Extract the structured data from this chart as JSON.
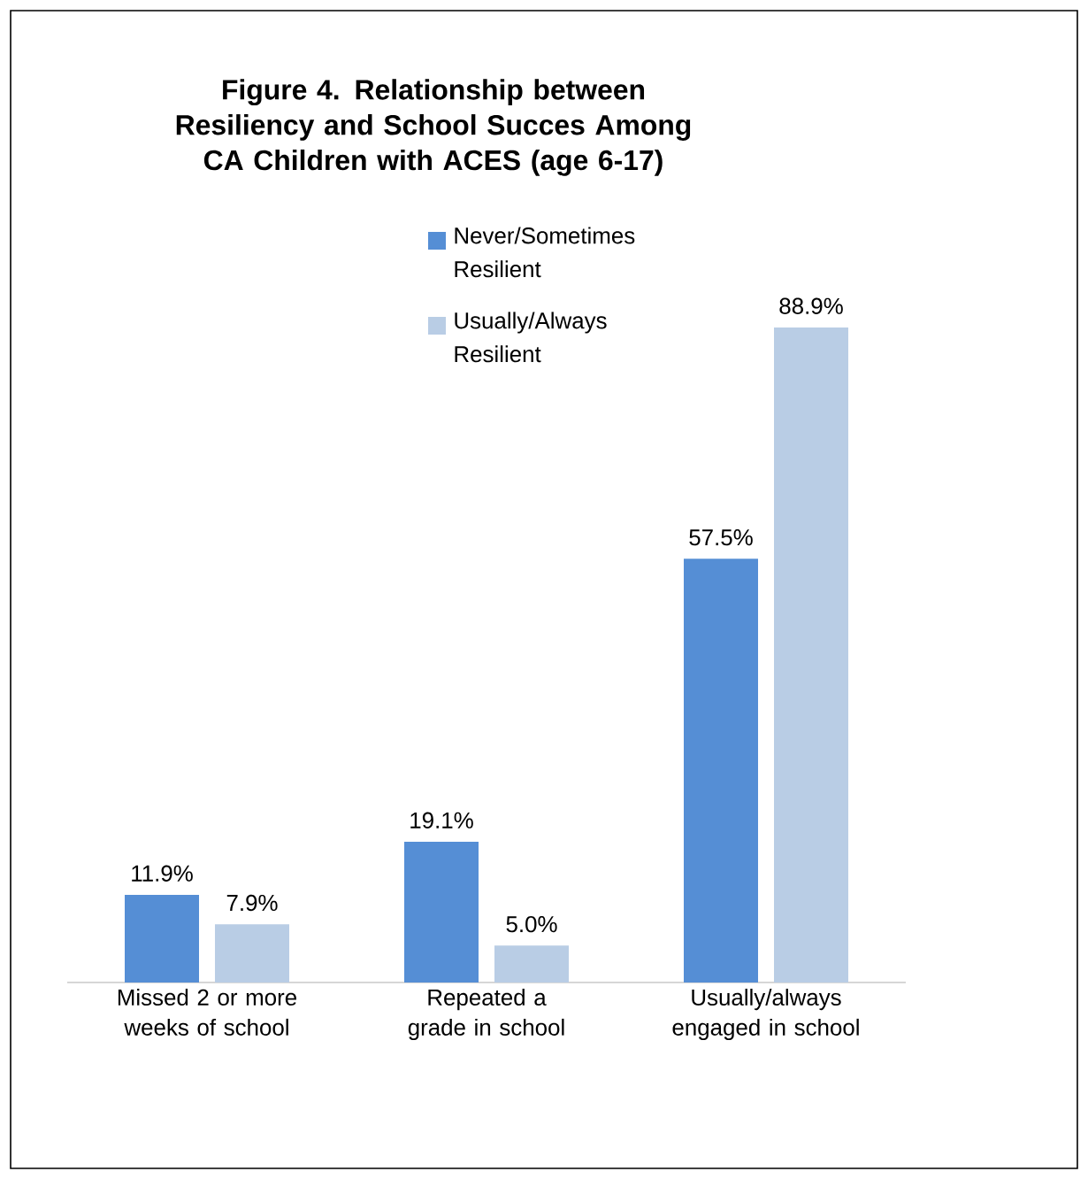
{
  "chart_data": {
    "type": "bar",
    "title": "Figure 4. Relationship between Resiliency and School Succes Among CA Children with ACES (age 6-17)",
    "categories": [
      "Missed 2 or more weeks of school",
      "Repeated a grade in school",
      "Usually/always engaged in school"
    ],
    "series": [
      {
        "name": "Never/Sometimes Resilient",
        "color": "#558ed5",
        "values": [
          11.9,
          19.1,
          57.5
        ],
        "value_labels": [
          "11.9%",
          "19.1%",
          "57.5%"
        ]
      },
      {
        "name": "Usually/Always Resilient",
        "color": "#b9cde5",
        "values": [
          7.9,
          5.0,
          88.9
        ],
        "value_labels": [
          "7.9%",
          "5.0%",
          "88.9%"
        ]
      }
    ],
    "legend": "top"
  }
}
